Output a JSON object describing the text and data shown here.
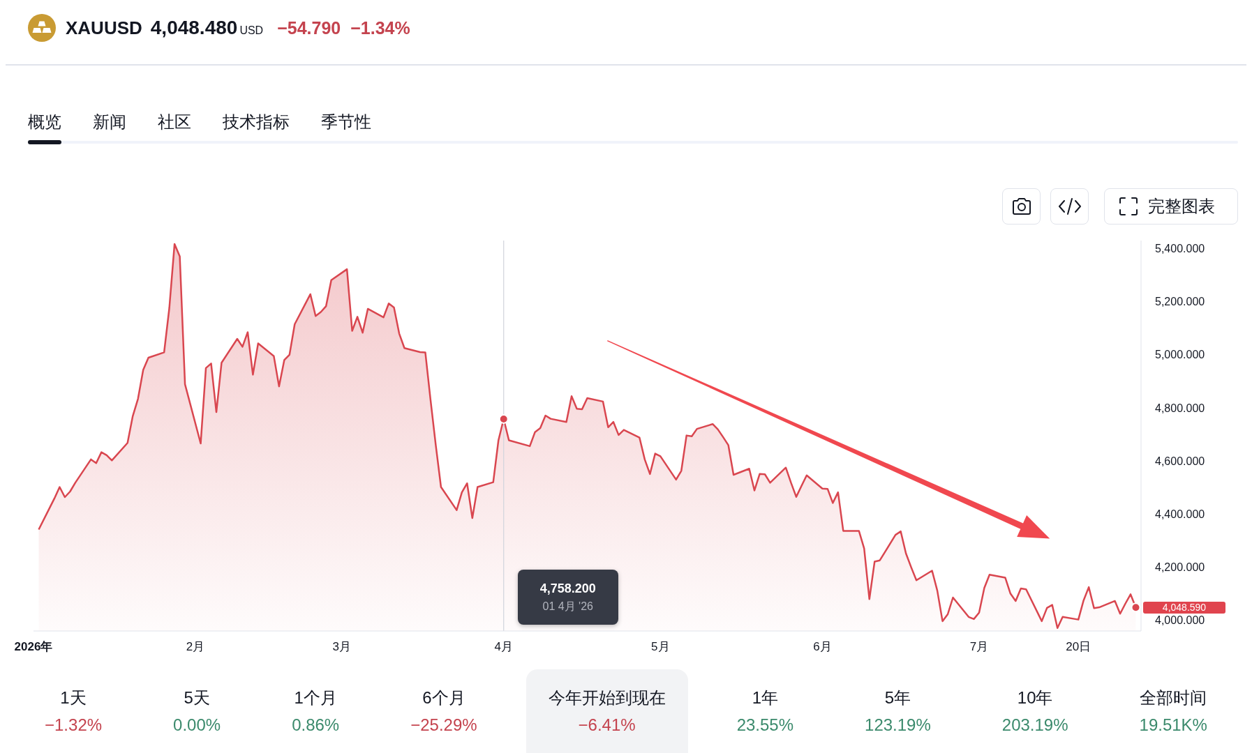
{
  "chart_data": [
    {
      "type": "area",
      "title": "XAUUSD",
      "x": [
        "2026-01-02",
        "2026-01-05",
        "2026-01-06",
        "2026-01-07",
        "2026-01-08",
        "2026-01-09",
        "2026-01-12",
        "2026-01-13",
        "2026-01-14",
        "2026-01-15",
        "2026-01-16",
        "2026-01-19",
        "2026-01-20",
        "2026-01-21",
        "2026-01-22",
        "2026-01-23",
        "2026-01-26",
        "2026-01-27",
        "2026-01-28",
        "2026-01-29",
        "2026-01-30",
        "2026-02-02",
        "2026-02-03",
        "2026-02-04",
        "2026-02-05",
        "2026-02-06",
        "2026-02-09",
        "2026-02-10",
        "2026-02-11",
        "2026-02-12",
        "2026-02-13",
        "2026-02-16",
        "2026-02-17",
        "2026-02-18",
        "2026-02-19",
        "2026-02-20",
        "2026-02-23",
        "2026-02-24",
        "2026-02-25",
        "2026-02-26",
        "2026-02-27",
        "2026-03-02",
        "2026-03-03",
        "2026-03-04",
        "2026-03-05",
        "2026-03-06",
        "2026-03-09",
        "2026-03-10",
        "2026-03-11",
        "2026-03-12",
        "2026-03-13",
        "2026-03-16",
        "2026-03-17",
        "2026-03-18",
        "2026-03-19",
        "2026-03-20",
        "2026-03-23",
        "2026-03-24",
        "2026-03-25",
        "2026-03-26",
        "2026-03-27",
        "2026-03-30",
        "2026-03-31",
        "2026-04-01",
        "2026-04-02",
        "2026-04-06",
        "2026-04-07",
        "2026-04-08",
        "2026-04-09",
        "2026-04-10",
        "2026-04-13",
        "2026-04-14",
        "2026-04-15",
        "2026-04-16",
        "2026-04-17",
        "2026-04-20",
        "2026-04-21",
        "2026-04-22",
        "2026-04-23",
        "2026-04-24",
        "2026-04-27",
        "2026-04-28",
        "2026-04-29",
        "2026-04-30",
        "2026-05-01",
        "2026-05-04",
        "2026-05-05",
        "2026-05-06",
        "2026-05-07",
        "2026-05-08",
        "2026-05-11",
        "2026-05-12",
        "2026-05-13",
        "2026-05-14",
        "2026-05-15",
        "2026-05-18",
        "2026-05-19",
        "2026-05-20",
        "2026-05-21",
        "2026-05-22",
        "2026-05-25",
        "2026-05-26",
        "2026-05-27",
        "2026-05-28",
        "2026-05-29",
        "2026-06-01",
        "2026-06-02",
        "2026-06-03",
        "2026-06-04",
        "2026-06-05",
        "2026-06-08",
        "2026-06-09",
        "2026-06-10",
        "2026-06-11",
        "2026-06-12",
        "2026-06-15",
        "2026-06-16",
        "2026-06-17",
        "2026-06-18",
        "2026-06-19",
        "2026-06-22",
        "2026-06-23",
        "2026-06-24",
        "2026-06-25",
        "2026-06-26",
        "2026-06-29",
        "2026-06-30",
        "2026-07-01",
        "2026-07-02",
        "2026-07-03",
        "2026-07-06",
        "2026-07-07",
        "2026-07-08",
        "2026-07-09",
        "2026-07-10",
        "2026-07-13",
        "2026-07-14",
        "2026-07-15",
        "2026-07-16",
        "2026-07-17",
        "2026-07-20",
        "2026-07-21",
        "2026-07-22",
        "2026-07-23",
        "2026-07-24",
        "2026-07-27",
        "2026-07-28",
        "2026-07-29",
        "2026-07-30",
        "2026-07-31"
      ],
      "series": [
        {
          "color": "#d9464f",
          "values": [
            4342,
            4459,
            4502,
            4464,
            4485,
            4518,
            4606,
            4592,
            4633,
            4622,
            4602,
            4668,
            4769,
            4834,
            4943,
            4989,
            5009,
            5176,
            5417,
            5370,
            4889,
            4666,
            4950,
            4967,
            4784,
            4970,
            5060,
            5030,
            5085,
            4925,
            5043,
            4995,
            4881,
            4980,
            5000,
            5115,
            5228,
            5146,
            5161,
            5183,
            5281,
            5322,
            5090,
            5143,
            5083,
            5173,
            5141,
            5193,
            5178,
            5080,
            5025,
            5010,
            5009,
            4830,
            4660,
            4502,
            4415,
            4482,
            4516,
            4385,
            4502,
            4520,
            4678,
            4758.2,
            4678,
            4656,
            4709,
            4724,
            4771,
            4759,
            4747,
            4844,
            4797,
            4795,
            4837,
            4824,
            4727,
            4747,
            4698,
            4717,
            4688,
            4606,
            4551,
            4628,
            4618,
            4530,
            4563,
            4696,
            4693,
            4721,
            4739,
            4719,
            4690,
            4660,
            4548,
            4571,
            4489,
            4551,
            4550,
            4518,
            4575,
            4518,
            4465,
            4506,
            4546,
            4496,
            4495,
            4442,
            4482,
            4337,
            4337,
            4271,
            4080,
            4221,
            4226,
            4322,
            4335,
            4252,
            4200,
            4151,
            4187,
            4112,
            3997,
            4023,
            4086,
            4013,
            4005,
            4029,
            4122,
            4172,
            4161,
            4101,
            4073,
            4120,
            4117,
            3997,
            4047,
            4058,
            3971,
            4013,
            4003,
            4075,
            4125,
            4046,
            4049,
            4073,
            4025,
            4063,
            4098,
            4048.59
          ]
        },
        {
          "type": "scatter",
          "marker": "circle",
          "color": "#d9464f",
          "x": [
            "2026-04-01",
            "2026-07-31"
          ],
          "values": [
            4758.2,
            4048.59
          ]
        }
      ],
      "xlim": [
        "2026-01-01",
        "2026-08-01"
      ],
      "xticks": [
        {
          "value": "2026-01-01",
          "label": "2026年"
        },
        {
          "value": "2026-02-01",
          "label": "2月"
        },
        {
          "value": "2026-03-01",
          "label": "3月"
        },
        {
          "value": "2026-04-01",
          "label": "4月"
        },
        {
          "value": "2026-05-01",
          "label": "5月"
        },
        {
          "value": "2026-06-01",
          "label": "6月"
        },
        {
          "value": "2026-07-01",
          "label": "7月"
        },
        {
          "value": "2026-07-20",
          "label": "20日"
        }
      ],
      "ylim": [
        3960,
        5430
      ],
      "yticks": [
        {
          "value": 4000,
          "label": "4,000.000"
        },
        {
          "value": 4200,
          "label": "4,200.000"
        },
        {
          "value": 4400,
          "label": "4,400.000"
        },
        {
          "value": 4600,
          "label": "4,600.000"
        },
        {
          "value": 4800,
          "label": "4,800.000"
        },
        {
          "value": 5000,
          "label": "5,000.000"
        },
        {
          "value": 5200,
          "label": "5,200.000"
        },
        {
          "value": 5400,
          "label": "5,400.000"
        }
      ],
      "ref_lines": [
        {
          "axis": "x",
          "value": "2026-04-01",
          "color": "#d1d4dc"
        }
      ],
      "annotations": [
        "4,048.480",
        "USD",
        "−54.790",
        "−1.34%",
        "概览",
        "新闻",
        "社区",
        "技术指标",
        "季节性",
        "完整图表",
        "4,758.200",
        "01 4月 '26",
        "4,048.590"
      ]
    },
    {
      "type": "other",
      "categories": [
        "1天",
        "5天",
        "1个月",
        "6个月",
        "今年开始到现在",
        "1年",
        "5年",
        "10年",
        "全部时间"
      ],
      "values": [
        -1.32,
        0,
        0.86,
        -25.29,
        -6.41,
        23.55,
        123.19,
        203.19,
        19510
      ],
      "value_labels": [
        "−1.32%",
        "0.00%",
        "0.86%",
        "−25.29%",
        "−6.41%",
        "23.55%",
        "123.19%",
        "203.19%",
        "19.51K%"
      ]
    }
  ]
}
